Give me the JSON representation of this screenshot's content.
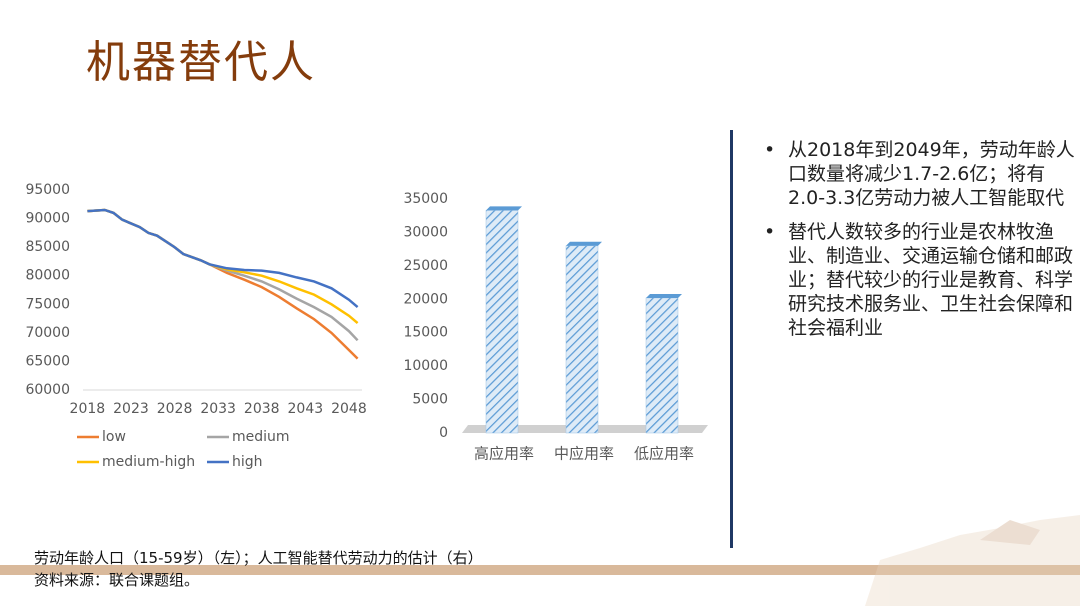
{
  "title": "机器替代人",
  "bullets": [
    "从2018年到2049年，劳动年龄人口数量将减少1.7-2.6亿；将有2.0-3.3亿劳动力被人工智能取代",
    "替代人数较多的行业是农林牧渔业、制造业、交通运输仓储和邮政业；替代较少的行业是教育、科学研究技术服务业、卫生社会保障和社会福利业"
  ],
  "caption": [
    "劳动年龄人口（15-59岁）（左）；人工智能替代劳动力的估计（右）",
    "资料来源：联合课题组。"
  ],
  "chart_data": [
    {
      "type": "line",
      "x": [
        2018,
        2020,
        2021,
        2022,
        2024,
        2025,
        2026,
        2028,
        2029,
        2031,
        2032,
        2034,
        2036,
        2038,
        2040,
        2042,
        2044,
        2046,
        2048,
        2049
      ],
      "xlim": [
        2017.5,
        2049.5
      ],
      "xticks": [
        2018,
        2023,
        2028,
        2033,
        2038,
        2043,
        2048
      ],
      "ylim": [
        60000,
        95000
      ],
      "yticks": [
        60000,
        65000,
        70000,
        75000,
        80000,
        85000,
        90000,
        95000
      ],
      "series": [
        {
          "name": "low",
          "color": "#ed7d31",
          "values": [
            91300,
            91500,
            91000,
            89800,
            88500,
            87500,
            87000,
            85000,
            83800,
            82700,
            82000,
            80500,
            79300,
            78000,
            76300,
            74300,
            72400,
            70000,
            67000,
            65500
          ]
        },
        {
          "name": "medium",
          "color": "#a5a5a5",
          "values": [
            91300,
            91500,
            91000,
            89800,
            88500,
            87500,
            87000,
            85000,
            83800,
            82700,
            82000,
            80900,
            80000,
            79000,
            77600,
            76000,
            74500,
            72800,
            70300,
            68700
          ]
        },
        {
          "name": "medium-high",
          "color": "#ffc000",
          "values": [
            91300,
            91500,
            91000,
            89800,
            88500,
            87500,
            87000,
            85000,
            83800,
            82700,
            82000,
            81100,
            80600,
            80000,
            79000,
            77800,
            76700,
            75000,
            73000,
            71700
          ]
        },
        {
          "name": "high",
          "color": "#4472c4",
          "values": [
            91300,
            91500,
            91000,
            89800,
            88500,
            87500,
            87000,
            85000,
            83800,
            82700,
            82000,
            81300,
            81000,
            80900,
            80500,
            79700,
            79000,
            77800,
            75800,
            74500
          ]
        }
      ]
    },
    {
      "type": "bar",
      "categories": [
        "高应用率",
        "中应用率",
        "低应用率"
      ],
      "values": [
        33300,
        28000,
        20200
      ],
      "color": "#5b9bd5",
      "ylim": [
        0,
        35000
      ],
      "yticks": [
        0,
        5000,
        10000,
        15000,
        20000,
        25000,
        30000,
        35000
      ]
    }
  ]
}
